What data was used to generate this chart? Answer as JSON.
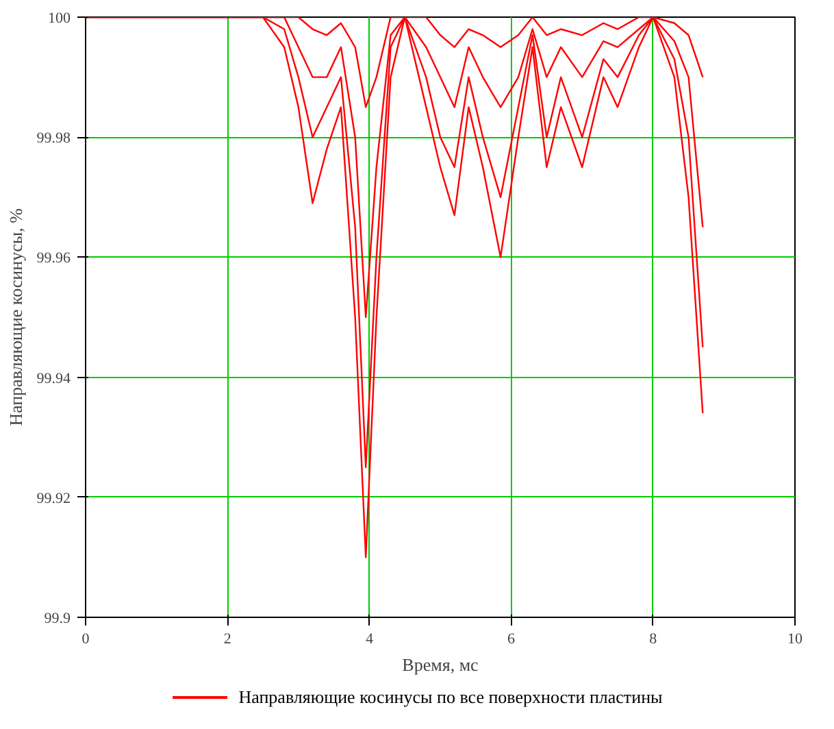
{
  "chart_data": {
    "type": "line",
    "xlabel": "Время, мс",
    "ylabel": "Направляющие косинусы, %",
    "x": [
      0,
      2.5,
      2.8,
      3.0,
      3.2,
      3.4,
      3.6,
      3.8,
      3.95,
      4.1,
      4.3,
      4.5,
      4.8,
      5.0,
      5.2,
      5.4,
      5.6,
      5.85,
      6.1,
      6.3,
      6.5,
      6.7,
      7.0,
      7.3,
      7.5,
      7.8,
      8.0,
      8.3,
      8.5,
      8.7
    ],
    "series": [
      {
        "name": "Направляющие косинусы по все поверхности пластины",
        "color": "#ff0000",
        "values": [
          100,
          100,
          99.995,
          99.985,
          99.969,
          99.978,
          99.985,
          99.95,
          99.91,
          99.95,
          99.99,
          100,
          99.985,
          99.975,
          99.967,
          99.985,
          99.975,
          99.96,
          99.98,
          99.995,
          99.975,
          99.985,
          99.975,
          99.99,
          99.985,
          99.995,
          100,
          99.99,
          99.97,
          99.934
        ]
      },
      {
        "color": "#ff0000",
        "values": [
          100,
          100,
          99.998,
          99.99,
          99.98,
          99.985,
          99.99,
          99.965,
          99.925,
          99.96,
          99.995,
          100,
          99.99,
          99.98,
          99.975,
          99.99,
          99.98,
          99.97,
          99.985,
          99.997,
          99.98,
          99.99,
          99.98,
          99.993,
          99.99,
          99.997,
          100,
          99.993,
          99.98,
          99.945
        ]
      },
      {
        "color": "#ff0000",
        "values": [
          100,
          100,
          100,
          99.995,
          99.99,
          99.99,
          99.995,
          99.98,
          99.95,
          99.975,
          99.997,
          100,
          99.995,
          99.99,
          99.985,
          99.995,
          99.99,
          99.985,
          99.99,
          99.998,
          99.99,
          99.995,
          99.99,
          99.996,
          99.995,
          99.998,
          100,
          99.996,
          99.99,
          99.965
        ]
      },
      {
        "color": "#ff0000",
        "values": [
          100,
          100,
          100,
          100,
          99.998,
          99.997,
          99.999,
          99.995,
          99.985,
          99.99,
          100,
          100,
          100,
          99.997,
          99.995,
          99.998,
          99.997,
          99.995,
          99.997,
          100,
          99.997,
          99.998,
          99.997,
          99.999,
          99.998,
          100,
          100,
          99.999,
          99.997,
          99.99
        ]
      }
    ],
    "xlim": [
      0,
      10
    ],
    "ylim": [
      99.9,
      100
    ],
    "xticks": [
      0,
      2,
      4,
      6,
      8,
      10
    ],
    "yticks": [
      99.9,
      99.92,
      99.94,
      99.96,
      99.98,
      100
    ],
    "grid": true,
    "legend": "bottom",
    "marker": "none",
    "line_style": "solid"
  }
}
